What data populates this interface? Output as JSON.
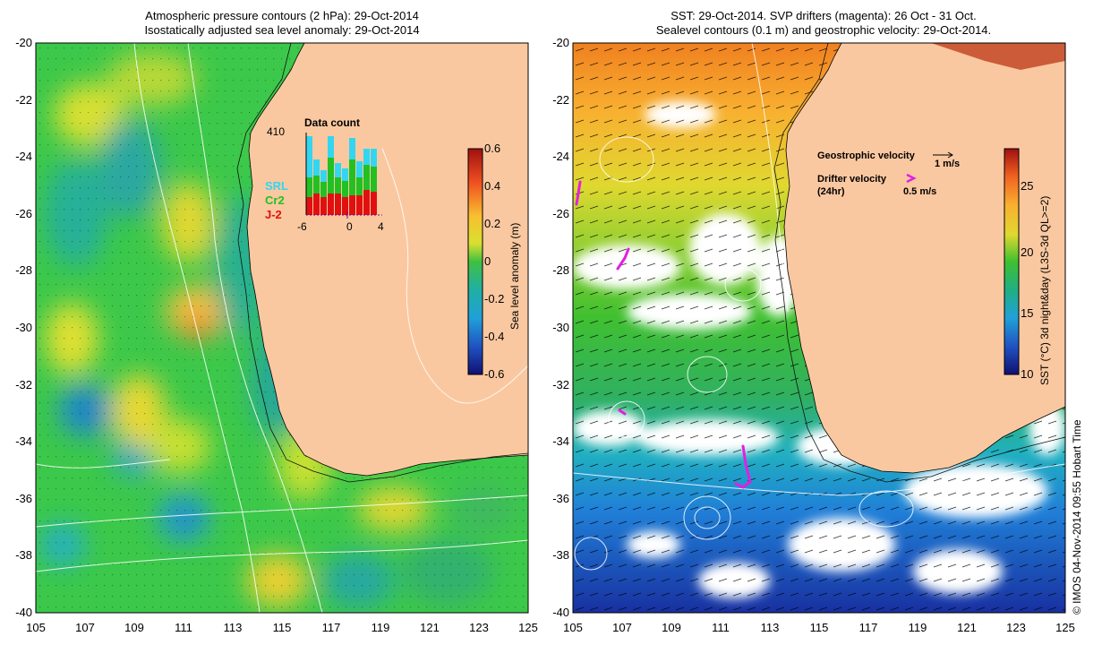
{
  "left_panel": {
    "title_line1": "Atmospheric pressure contours (2 hPa): 29-Oct-2014",
    "title_line2": "Isostatically adjusted sea level anomaly: 29-Oct-2014",
    "colorbar_label": "Sea level anomaly (m)",
    "colorbar_ticks": [
      "0.6",
      "0.4",
      "0.2",
      "0",
      "-0.2",
      "-0.4",
      "-0.6"
    ],
    "inset": {
      "title": "Data count",
      "max_label": "410",
      "x_ticks": [
        "-6",
        "0",
        "4"
      ],
      "legend": [
        {
          "name": "SRL",
          "color": "#33d6f0"
        },
        {
          "name": "Cr2",
          "color": "#22c022"
        },
        {
          "name": "J-2",
          "color": "#e01010"
        }
      ]
    }
  },
  "right_panel": {
    "title_line1": "SST: 29-Oct-2014. SVP drifters (magenta): 26 Oct - 31 Oct.",
    "title_line2": "Sealevel contours (0.1 m) and geostrophic velocity: 29-Oct-2014.",
    "colorbar_label": "SST (°C) 3d night&day (L3S-3d QL>=2)",
    "colorbar_ticks": [
      "25",
      "20",
      "15",
      "10"
    ],
    "legend_geo": "Geostrophic velocity",
    "legend_geo_scale": "1 m/s",
    "legend_drifter": "Drifter velocity",
    "legend_drifter_sub": "(24hr)",
    "legend_drifter_scale": "0.5 m/s"
  },
  "axes": {
    "y_ticks": [
      "-20",
      "-22",
      "-24",
      "-26",
      "-28",
      "-30",
      "-32",
      "-34",
      "-36",
      "-38",
      "-40"
    ],
    "x_ticks": [
      "105",
      "107",
      "109",
      "111",
      "113",
      "115",
      "117",
      "119",
      "121",
      "123",
      "125"
    ]
  },
  "credit": "© IMOS 04-Nov-2014 09:55 Hobart Time",
  "colors": {
    "land": "#fac8a0",
    "sla_green": "#3cc84a",
    "sla_yellow": "#d8e030",
    "sla_cyan": "#20a8b8",
    "drifter": "#e020e0"
  }
}
